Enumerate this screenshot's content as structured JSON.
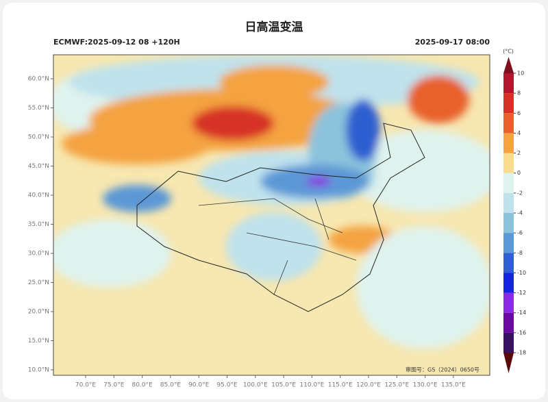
{
  "title": "日高温变温",
  "subtitle_left": "ECMWF:2025-09-12 08 +120H",
  "subtitle_right": "2025-09-17 08:00",
  "credit": "审图号：GS（2024）0650号",
  "map": {
    "lat_ticks": [
      {
        "value": 60,
        "label": "60.0°N"
      },
      {
        "value": 55,
        "label": "55.0°N"
      },
      {
        "value": 50,
        "label": "50.0°N"
      },
      {
        "value": 45,
        "label": "45.0°N"
      },
      {
        "value": 40,
        "label": "40.0°N"
      },
      {
        "value": 35,
        "label": "35.0°N"
      },
      {
        "value": 30,
        "label": "30.0°N"
      },
      {
        "value": 25,
        "label": "25.0°N"
      },
      {
        "value": 20,
        "label": "20.0°N"
      },
      {
        "value": 15,
        "label": "15.0°N"
      },
      {
        "value": 10,
        "label": "10.0°N"
      }
    ],
    "lon_ticks": [
      {
        "value": 70,
        "label": "70.0°E"
      },
      {
        "value": 75,
        "label": "75.0°E"
      },
      {
        "value": 80,
        "label": "80.0°E"
      },
      {
        "value": 85,
        "label": "85.0°E"
      },
      {
        "value": 90,
        "label": "90.0°E"
      },
      {
        "value": 95,
        "label": "95.0°E"
      },
      {
        "value": 100,
        "label": "100.0°E"
      },
      {
        "value": 105,
        "label": "105.0°E"
      },
      {
        "value": 110,
        "label": "110.0°E"
      },
      {
        "value": 115,
        "label": "115.0°E"
      },
      {
        "value": 120,
        "label": "120.0°E"
      },
      {
        "value": 125,
        "label": "125.0°E"
      },
      {
        "value": 130,
        "label": "130.0°E"
      },
      {
        "value": 135,
        "label": "135.0°E"
      }
    ]
  },
  "colorbar": {
    "unit": "(°C)",
    "levels": [
      10,
      8,
      6,
      4,
      2,
      0,
      -2,
      -4,
      -6,
      -8,
      -10,
      -12,
      -14,
      -16,
      -18
    ],
    "colors": [
      "#b2182b",
      "#d73027",
      "#e8602c",
      "#f4a340",
      "#fbdc8f",
      "#dff3ee",
      "#bfe2ec",
      "#8cc3dc",
      "#5b98d6",
      "#2f5fd0",
      "#1424e0",
      "#8a2be2",
      "#6a0aa0",
      "#3a1060"
    ],
    "over_color": "#7f0f1e",
    "under_color": "#5a0a0a"
  }
}
